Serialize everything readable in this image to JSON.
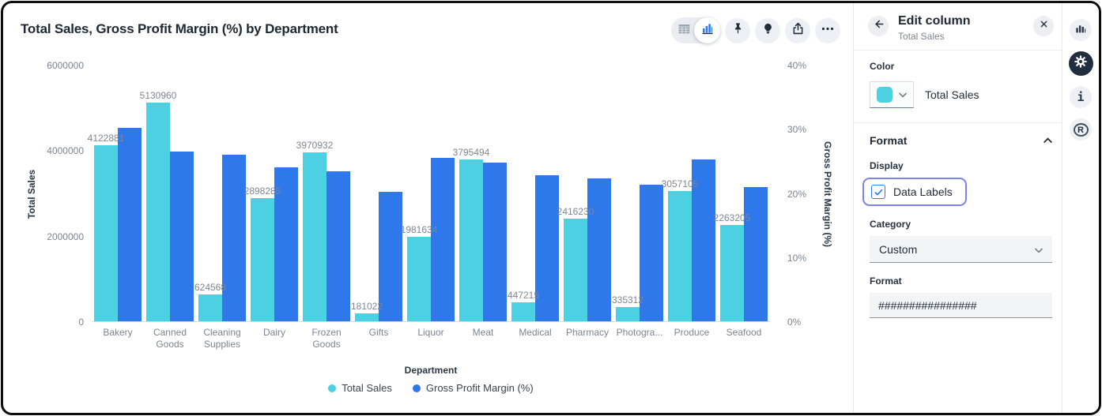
{
  "chart": {
    "title": "Total Sales, Gross Profit Margin (%) by Department"
  },
  "chart_data": {
    "type": "bar",
    "title": "Total Sales, Gross Profit Margin (%) by Department",
    "categories": [
      "Bakery",
      "Canned Goods",
      "Cleaning Supplies",
      "Dairy",
      "Frozen Goods",
      "Gifts",
      "Liquor",
      "Meat",
      "Medical",
      "Pharmacy",
      "Photogra...",
      "Produce",
      "Seafood"
    ],
    "series": [
      {
        "name": "Total Sales",
        "color": "#4BD1E1",
        "axis": "left",
        "show_data_labels": true,
        "values": [
          4122881,
          5130960,
          624568,
          2898285,
          3970932,
          181022,
          1981634,
          3795494,
          447215,
          2416230,
          335312,
          3057105,
          2263205
        ]
      },
      {
        "name": "Gross Profit Margin (%)",
        "color": "#2E78EC",
        "axis": "right",
        "show_data_labels": false,
        "values": [
          30.2,
          26.6,
          26.0,
          24.1,
          23.5,
          20.3,
          25.6,
          24.8,
          22.9,
          22.3,
          21.3,
          25.3,
          21.0
        ]
      }
    ],
    "xlabel": "Department",
    "ylabel_left": "Total Sales",
    "ylabel_right": "Gross Profit Margin (%)",
    "ylim_left": [
      0,
      6000000
    ],
    "ylim_right": [
      0,
      40
    ],
    "yticks_left": [
      "6000000",
      "4000000",
      "2000000",
      "0"
    ],
    "yticks_right": [
      "40%",
      "30%",
      "20%",
      "10%",
      "0%"
    ],
    "legend_position": "bottom",
    "grid": false
  },
  "panel": {
    "title": "Edit column",
    "subtitle": "Total Sales",
    "color_section": {
      "label": "Color",
      "value": "Total Sales",
      "swatch": "#4BD1E1"
    },
    "format_section": {
      "label": "Format",
      "display_label": "Display",
      "data_labels": {
        "label": "Data Labels",
        "checked": true
      },
      "category_label": "Category",
      "category_value": "Custom",
      "format_label": "Format",
      "format_value": "################"
    }
  },
  "rail": {
    "info_glyph": "i",
    "r_glyph": "R"
  }
}
